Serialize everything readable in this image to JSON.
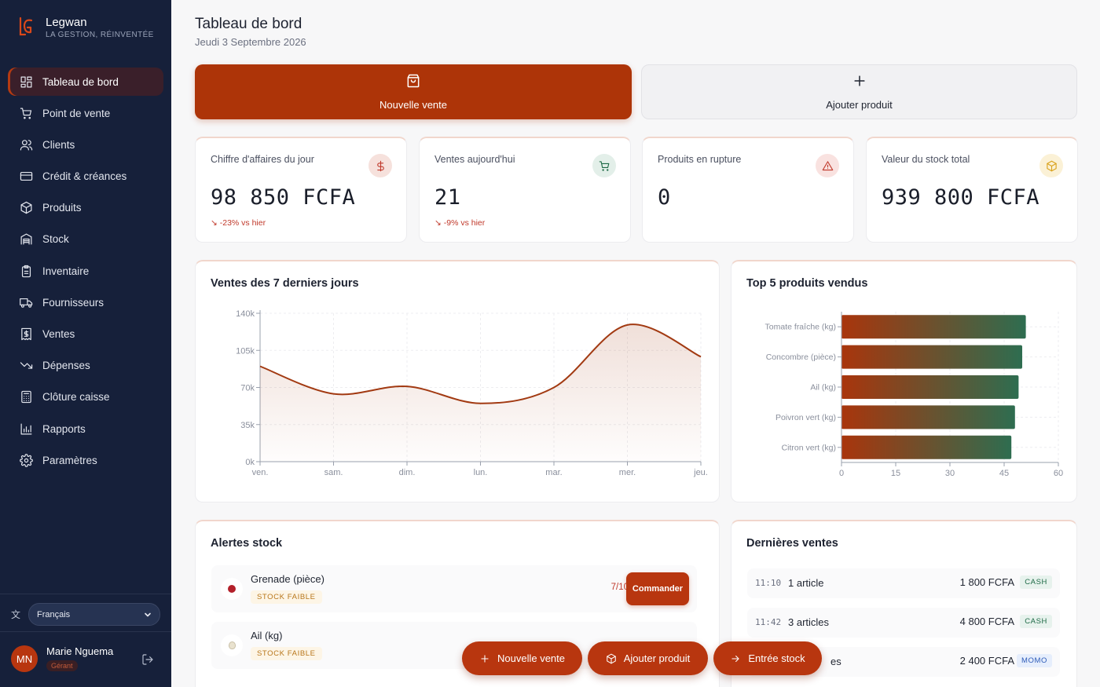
{
  "brand": {
    "name": "Legwan",
    "tagline": "LA GESTION, RÉINVENTÉE"
  },
  "sidebar": {
    "items": [
      {
        "label": "Tableau de bord",
        "icon": "dashboard-icon",
        "active": true
      },
      {
        "label": "Point de vente",
        "icon": "cart-icon"
      },
      {
        "label": "Clients",
        "icon": "users-icon"
      },
      {
        "label": "Crédit & créances",
        "icon": "credit-card-icon"
      },
      {
        "label": "Produits",
        "icon": "package-icon"
      },
      {
        "label": "Stock",
        "icon": "warehouse-icon"
      },
      {
        "label": "Inventaire",
        "icon": "clipboard-icon"
      },
      {
        "label": "Fournisseurs",
        "icon": "truck-icon"
      },
      {
        "label": "Ventes",
        "icon": "receipt-icon"
      },
      {
        "label": "Dépenses",
        "icon": "trending-down-icon"
      },
      {
        "label": "Clôture caisse",
        "icon": "calculator-icon"
      },
      {
        "label": "Rapports",
        "icon": "bar-chart-icon"
      },
      {
        "label": "Paramètres",
        "icon": "gear-icon"
      }
    ],
    "language": "Français",
    "user": {
      "initials": "MN",
      "name": "Marie Nguema",
      "role": "Gérant"
    }
  },
  "header": {
    "title": "Tableau de bord",
    "date": "Jeudi 3 Septembre 2026"
  },
  "actions": {
    "primary_label": "Nouvelle vente",
    "secondary_label": "Ajouter produit"
  },
  "kpis": [
    {
      "label": "Chiffre d'affaires du jour",
      "value": "98 850 FCFA",
      "trend": "-23% vs hier",
      "icon": "dollar-icon",
      "color": "#c0392b"
    },
    {
      "label": "Ventes aujourd'hui",
      "value": "21",
      "trend": "-9% vs hier",
      "icon": "cart-icon",
      "color": "#1e6a46"
    },
    {
      "label": "Produits en rupture",
      "value": "0",
      "trend": "",
      "icon": "warning-icon",
      "color": "#c0392b"
    },
    {
      "label": "Valeur du stock total",
      "value": "939 800 FCFA",
      "trend": "",
      "icon": "package-icon",
      "color": "#d9a21b"
    }
  ],
  "charts": {
    "sales_title": "Ventes des 7 derniers jours",
    "top_title": "Top 5 produits vendus"
  },
  "chart_data": [
    {
      "type": "area",
      "title": "Ventes des 7 derniers jours",
      "categories": [
        "ven.",
        "sam.",
        "dim.",
        "lun.",
        "mar.",
        "mer.",
        "jeu."
      ],
      "values": [
        90000,
        64000,
        71000,
        55000,
        70000,
        129000,
        99000
      ],
      "ylim": [
        0,
        140000
      ],
      "yticks": [
        "0k",
        "35k",
        "70k",
        "105k",
        "140k"
      ],
      "ytick_values": [
        0,
        35000,
        70000,
        105000,
        140000
      ],
      "grid": true,
      "color": "#a23a12"
    },
    {
      "type": "bar",
      "orientation": "horizontal",
      "title": "Top 5 produits vendus",
      "categories": [
        "Tomate fraîche (kg)",
        "Concombre (pièce)",
        "Ail (kg)",
        "Poivron vert (kg)",
        "Citron vert (kg)"
      ],
      "values": [
        51,
        50,
        49,
        48,
        47
      ],
      "xlim": [
        0,
        60
      ],
      "xticks": [
        "0",
        "15",
        "30",
        "45",
        "60"
      ],
      "xtick_values": [
        0,
        15,
        30,
        45,
        60
      ],
      "grid": true,
      "colors": [
        "#a9350c",
        "#2e6d50"
      ]
    }
  ],
  "alerts": {
    "title": "Alertes stock",
    "items": [
      {
        "name": "Grenade (pièce)",
        "badge": "STOCK FAIBLE",
        "ratio": "7/10",
        "button": "Commander",
        "thumb": "pomegranate-icon"
      },
      {
        "name": "Ail (kg)",
        "badge": "STOCK FAIBLE",
        "ratio": "",
        "button": "",
        "thumb": "garlic-icon"
      }
    ]
  },
  "recent_sales": {
    "title": "Dernières ventes",
    "items": [
      {
        "time": "11:10",
        "items": "1 article",
        "amount": "1 800 FCFA",
        "method": "CASH"
      },
      {
        "time": "11:42",
        "items": "3 articles",
        "amount": "4 800 FCFA",
        "method": "CASH"
      },
      {
        "time": "",
        "items": "es",
        "amount": "2 400 FCFA",
        "method": "MOMO"
      }
    ]
  },
  "fabs": {
    "new_sale": "Nouvelle vente",
    "add_product": "Ajouter produit",
    "stock_entry": "Entrée stock"
  }
}
